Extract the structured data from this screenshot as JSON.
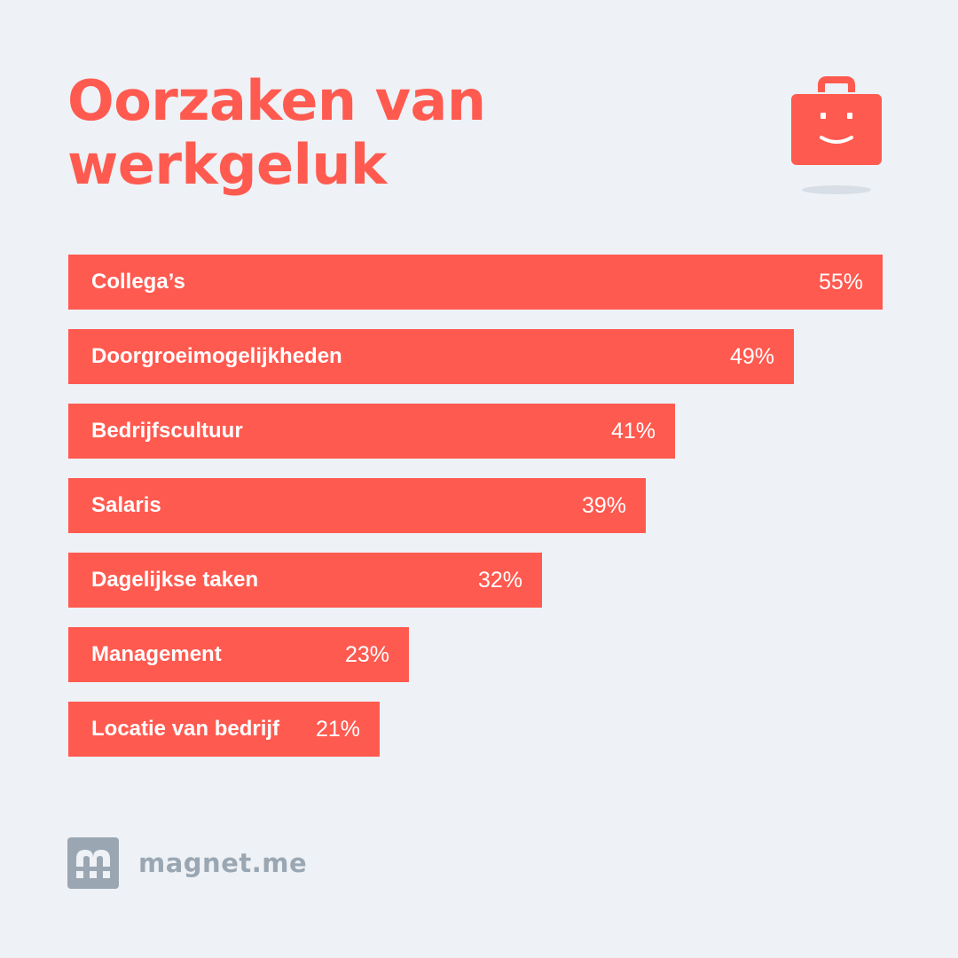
{
  "header": {
    "title_line1": "Oorzaken van",
    "title_line2": "werkgeluk",
    "icon": "smiling-briefcase-icon"
  },
  "chart_data": {
    "type": "bar",
    "orientation": "horizontal",
    "title": "Oorzaken van werkgeluk",
    "categories": [
      "Collega’s",
      "Doorgroeimogelijkheden",
      "Bedrijfscultuur",
      "Salaris",
      "Dagelijkse taken",
      "Management",
      "Locatie van bedrijf"
    ],
    "values": [
      55,
      49,
      41,
      39,
      32,
      23,
      21
    ],
    "value_labels": [
      "55%",
      "49%",
      "41%",
      "39%",
      "32%",
      "23%",
      "21%"
    ],
    "unit": "%",
    "xlim": [
      0,
      55
    ],
    "grid": false,
    "legend": "none"
  },
  "footer": {
    "brand_name": "magnet.me",
    "logo_icon": "magnet-me-logo-icon"
  },
  "colors": {
    "accent": "#ff5a50",
    "background": "#eef1f5",
    "brand_grey": "#9aa7b3",
    "shadow": "#d7dee6"
  }
}
